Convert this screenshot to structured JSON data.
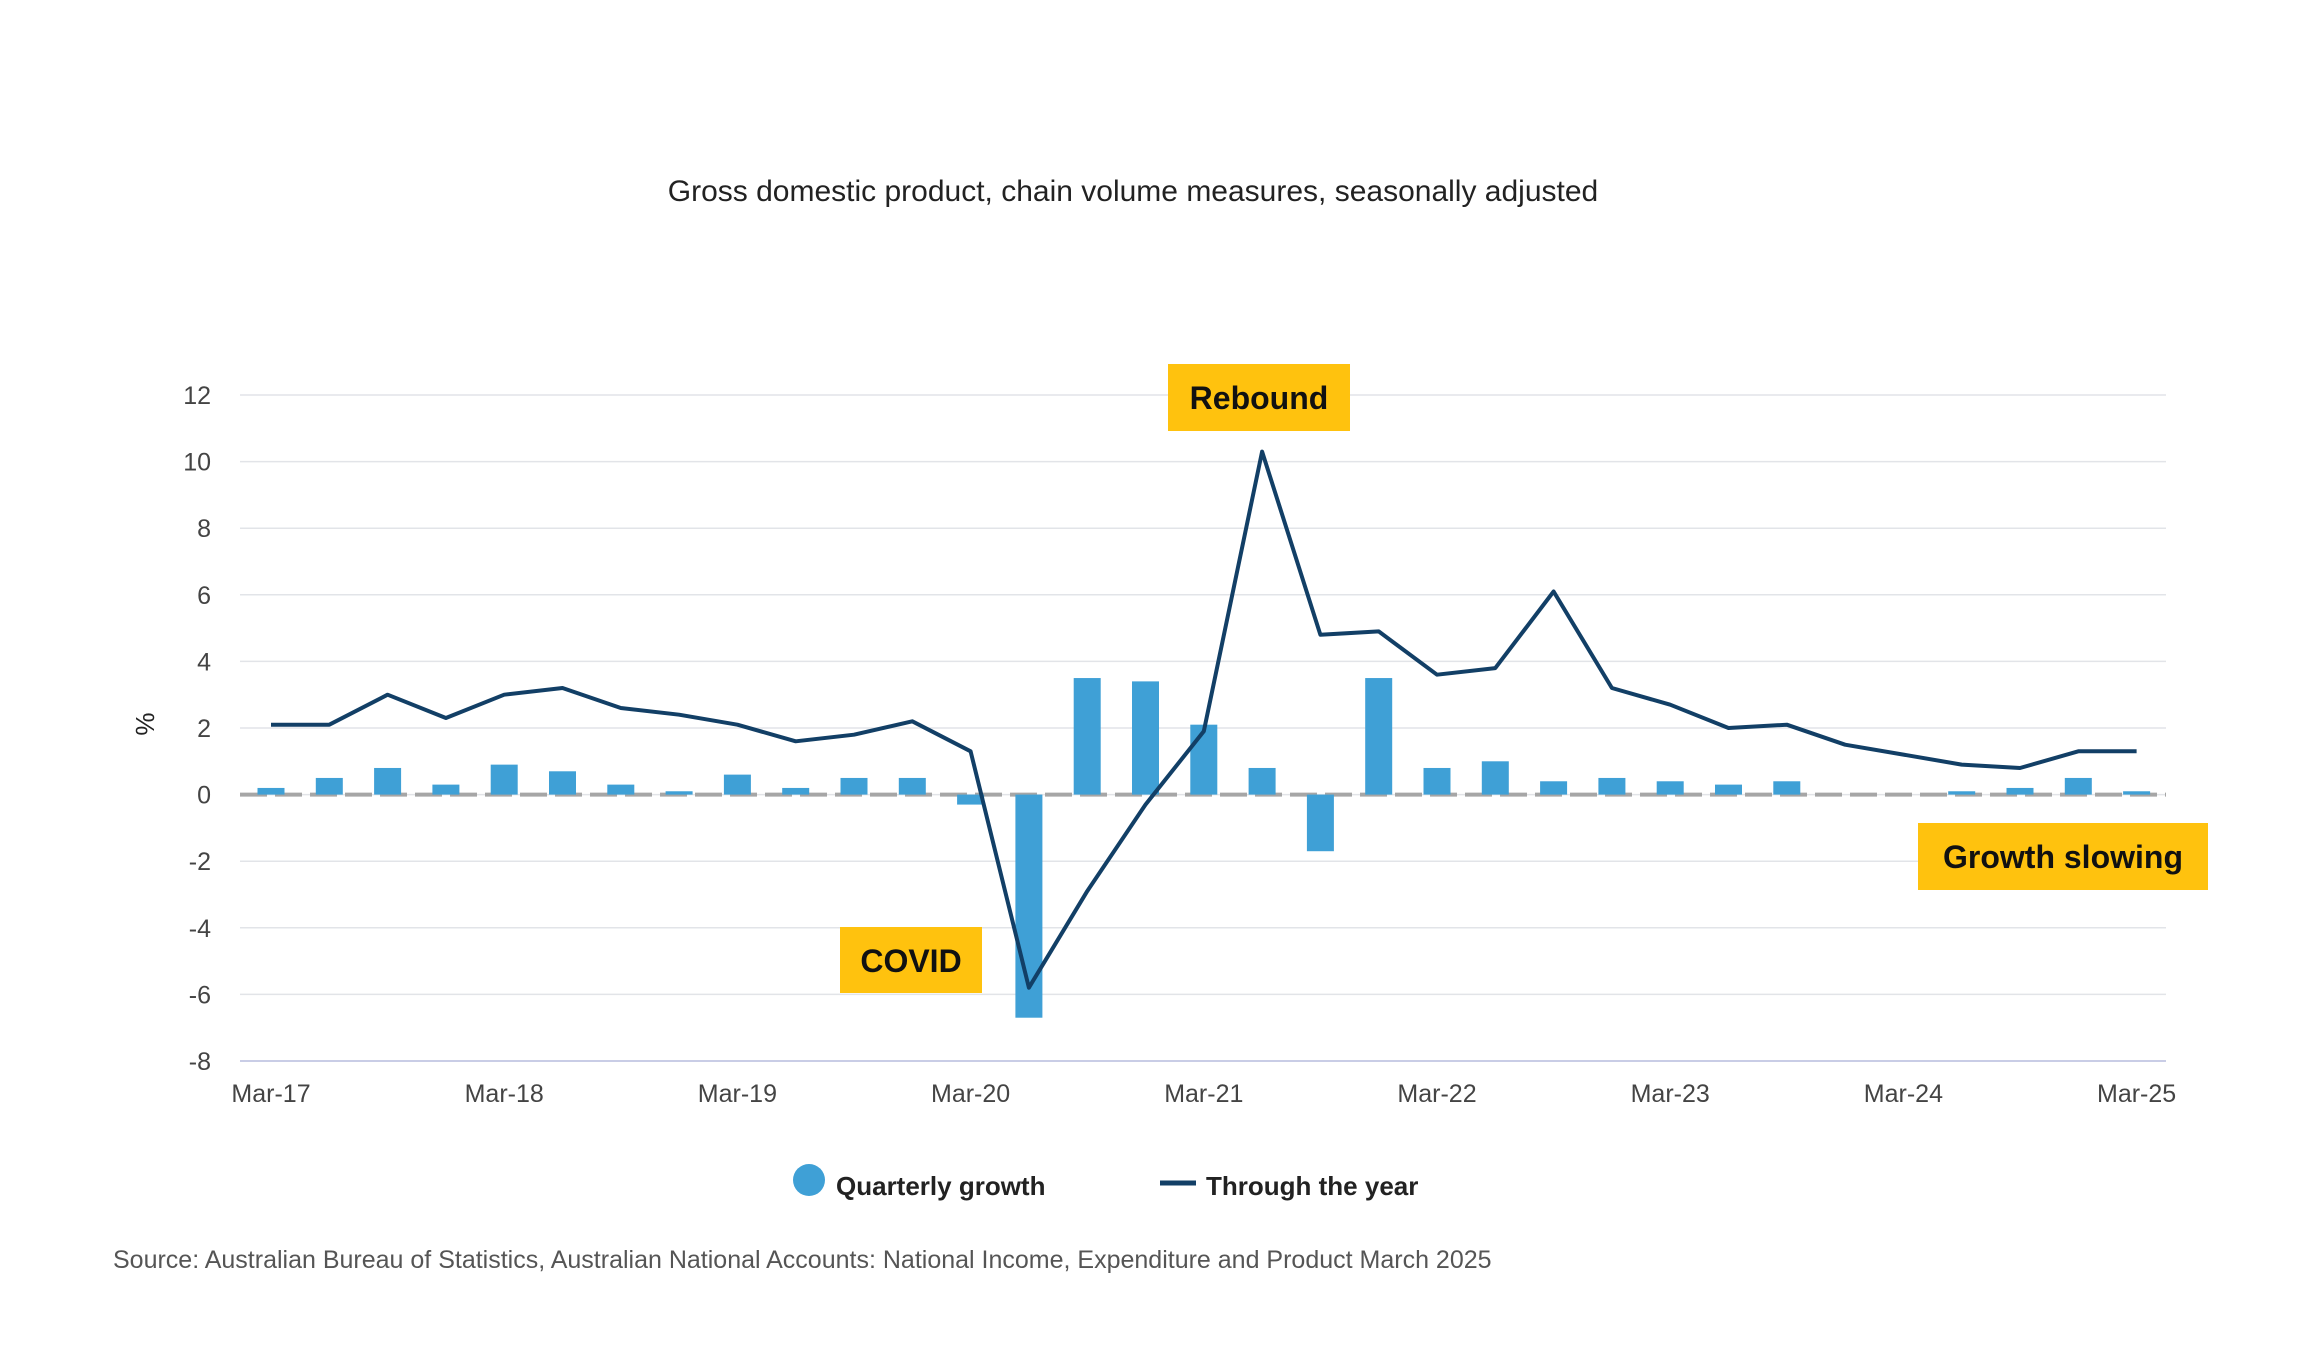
{
  "chart_data": {
    "type": "bar",
    "title": "Gross domestic product, chain volume measures, seasonally adjusted",
    "ylabel": "%",
    "xlabel": "",
    "ylim": [
      -8,
      12
    ],
    "yticks": [
      12,
      10,
      8,
      6,
      4,
      2,
      0,
      -2,
      -4,
      -6,
      -8
    ],
    "grid": true,
    "legend_position": "bottom",
    "x_tick_labels": [
      "Mar-17",
      "Mar-18",
      "Mar-19",
      "Mar-20",
      "Mar-21",
      "Mar-22",
      "Mar-23",
      "Mar-24",
      "Mar-25"
    ],
    "categories": [
      "Mar-17",
      "Jun-17",
      "Sep-17",
      "Dec-17",
      "Mar-18",
      "Jun-18",
      "Sep-18",
      "Dec-18",
      "Mar-19",
      "Jun-19",
      "Sep-19",
      "Dec-19",
      "Mar-20",
      "Jun-20",
      "Sep-20",
      "Dec-20",
      "Mar-21",
      "Jun-21",
      "Sep-21",
      "Dec-21",
      "Mar-22",
      "Jun-22",
      "Sep-22",
      "Dec-22",
      "Mar-23",
      "Jun-23",
      "Sep-23",
      "Dec-23",
      "Mar-24",
      "Jun-24",
      "Sep-24",
      "Dec-24",
      "Mar-25"
    ],
    "series": [
      {
        "name": "Quarterly growth",
        "kind": "bar",
        "color": "#3fa0d6",
        "values": [
          0.2,
          0.5,
          0.8,
          0.3,
          0.9,
          0.7,
          0.3,
          0.1,
          0.6,
          0.2,
          0.5,
          0.5,
          -0.3,
          -6.7,
          3.5,
          3.4,
          2.1,
          0.8,
          -1.7,
          3.5,
          0.8,
          1.0,
          0.4,
          0.5,
          0.4,
          0.3,
          0.4,
          0.0,
          0.0,
          0.1,
          0.2,
          0.5,
          0.1
        ]
      },
      {
        "name": "Through the year",
        "kind": "line",
        "color": "#123f66",
        "values": [
          2.1,
          2.1,
          3.0,
          2.3,
          3.0,
          3.2,
          2.6,
          2.4,
          2.1,
          1.6,
          1.8,
          2.2,
          1.3,
          -5.8,
          -2.9,
          -0.3,
          1.9,
          10.3,
          4.8,
          4.9,
          3.6,
          3.8,
          6.1,
          3.2,
          2.7,
          2.0,
          2.1,
          1.5,
          1.2,
          0.9,
          0.8,
          1.3,
          1.3
        ]
      }
    ],
    "annotations": [
      {
        "text": "Rebound",
        "color": "#ffc20e"
      },
      {
        "text": "COVID",
        "color": "#ffc20e"
      },
      {
        "text": "Growth slowing",
        "color": "#ffc20e"
      }
    ],
    "source": "Source: Australian Bureau of Statistics, Australian National Accounts: National Income, Expenditure and Product March 2025"
  }
}
